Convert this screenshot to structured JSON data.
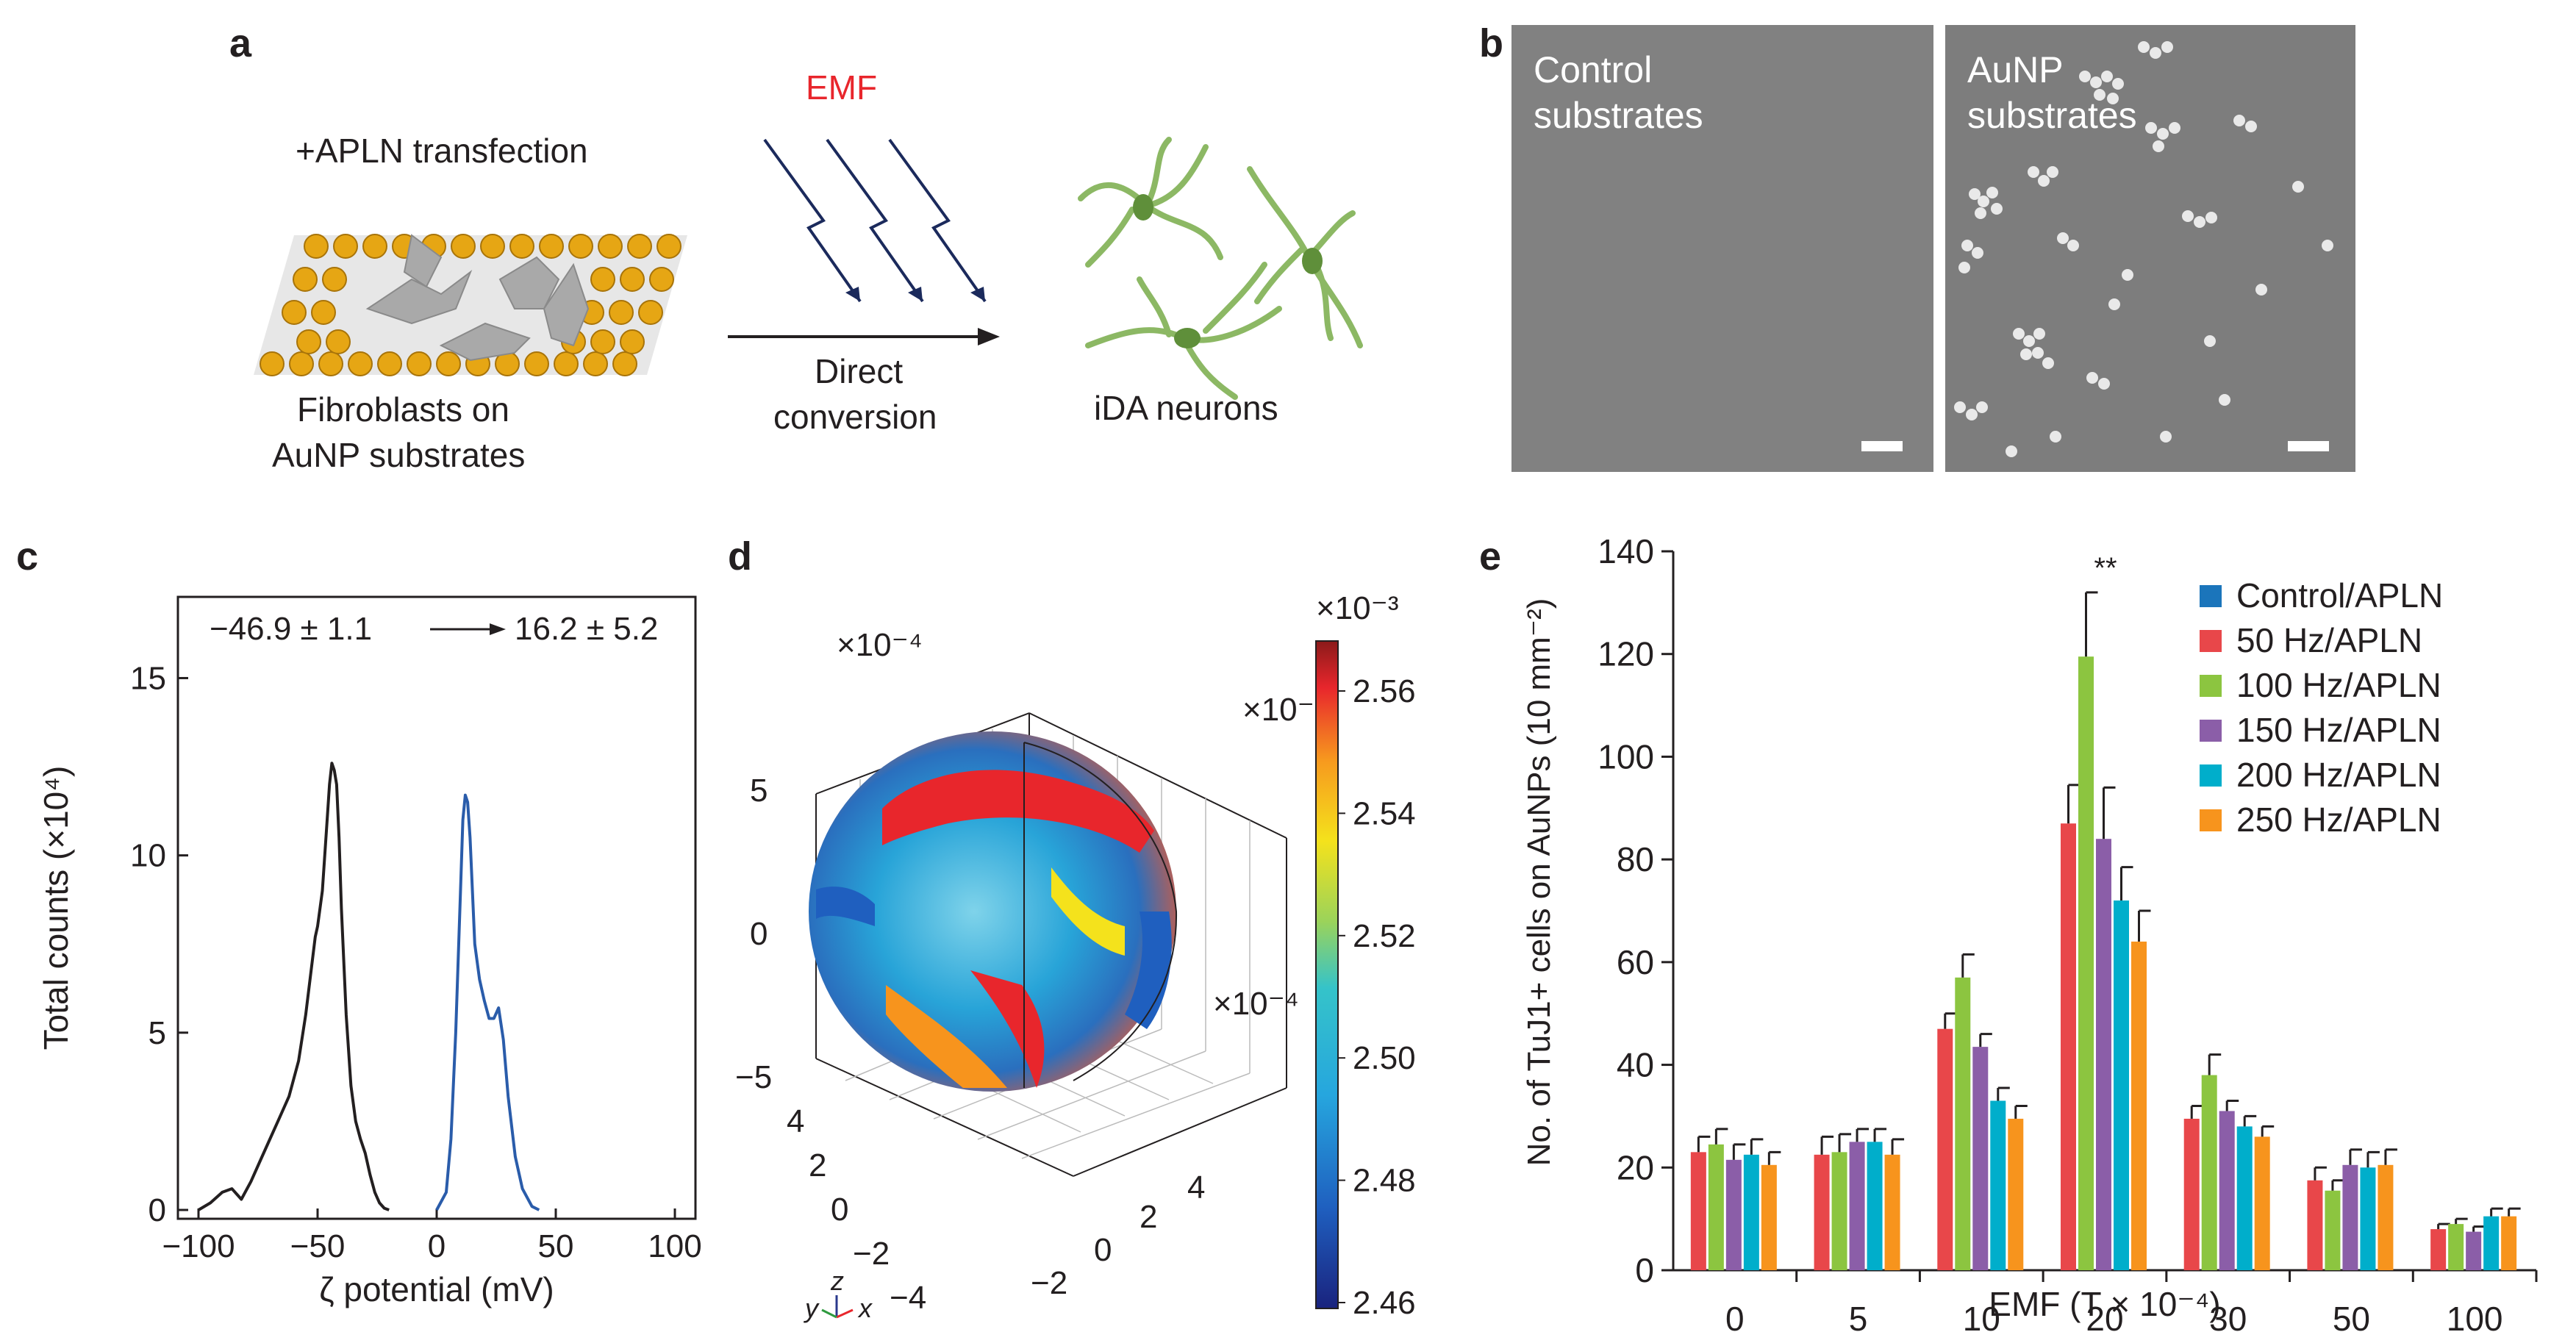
{
  "panel_a": {
    "label": "a",
    "transfection": "+APLN transfection",
    "emf": "EMF",
    "arrow_label_1": "Direct",
    "arrow_label_2": "conversion",
    "substrate_label_1": "Fibroblasts on",
    "substrate_label_2": "AuNP substrates",
    "neurons": "iDA neurons",
    "emf_color": "#e8262c"
  },
  "panel_b": {
    "label": "b",
    "left_caption_1": "Control",
    "left_caption_2": "substrates",
    "right_caption_1": "AuNP",
    "right_caption_2": "substrates"
  },
  "panel_c": {
    "label": "c",
    "annotation_left": "−46.9 ± 1.1",
    "annotation_right": "16.2 ± 5.2",
    "ylabel": "Total counts (×10⁴)",
    "xlabel": "ζ potential (mV)",
    "x_ticks": [
      "−100",
      "−50",
      "0",
      "50",
      "100"
    ],
    "y_ticks": [
      "0",
      "5",
      "10",
      "15"
    ]
  },
  "panel_d": {
    "label": "d",
    "exp_top_left": "×10⁻⁴",
    "exp_top_right": "×10⁻⁴",
    "exp_right": "×10⁻⁴",
    "colorbar_exp": "×10⁻³",
    "colorbar_ticks": [
      "2.56",
      "2.54",
      "2.52",
      "2.50",
      "2.48",
      "2.46"
    ],
    "z_ticks": [
      "5",
      "0",
      "−5"
    ],
    "y_ticks": [
      "4",
      "2",
      "0",
      "−2",
      "−4"
    ],
    "x_ticks": [
      "4",
      "2",
      "0",
      "−2"
    ],
    "axis_y": "y",
    "axis_z": "z",
    "axis_x": "x"
  },
  "panel_e": {
    "label": "e",
    "significance": "**"
  },
  "chart_data": [
    {
      "type": "line",
      "panel": "c",
      "xlabel": "ζ potential (mV)",
      "ylabel": "Total counts (×10⁴)",
      "xlim": [
        -100,
        100
      ],
      "ylim": [
        0,
        17
      ],
      "series": [
        {
          "color": "#231f20",
          "x": [
            -100,
            -95,
            -90,
            -86,
            -82,
            -78,
            -74,
            -70,
            -66,
            -62,
            -58,
            -55,
            -53,
            -51,
            -50,
            -48,
            -46,
            -45,
            -44,
            -43,
            -42,
            -41,
            -40,
            -38,
            -36,
            -34,
            -32,
            -30,
            -28,
            -26,
            -24,
            -22,
            -20
          ],
          "y": [
            0,
            0.2,
            0.5,
            0.6,
            0.3,
            0.8,
            1.4,
            2.0,
            2.6,
            3.2,
            4.2,
            5.5,
            6.6,
            7.7,
            8.0,
            9.0,
            11.0,
            12.0,
            12.6,
            12.4,
            12.0,
            10.5,
            8.5,
            5.5,
            3.5,
            2.5,
            2.0,
            1.6,
            1.0,
            0.5,
            0.2,
            0.05,
            0
          ]
        },
        {
          "color": "#2a5caa",
          "x": [
            0,
            4,
            6,
            8,
            10,
            11,
            12,
            13,
            14,
            15,
            16,
            18,
            20,
            22,
            24,
            26,
            28,
            30,
            33,
            36,
            40,
            43
          ],
          "y": [
            0,
            0.5,
            2.0,
            5.0,
            9.0,
            11.0,
            11.7,
            11.5,
            10.5,
            9.0,
            7.5,
            6.5,
            5.9,
            5.4,
            5.4,
            5.7,
            4.8,
            3.2,
            1.5,
            0.6,
            0.1,
            0
          ]
        }
      ]
    },
    {
      "type": "bar",
      "panel": "e",
      "xlabel": "EMF (T × 10⁻⁴)",
      "ylabel": "No. of TuJ1+ cells on AuNPs (10 mm⁻²)",
      "ylim": [
        0,
        140
      ],
      "y_ticks": [
        0,
        20,
        40,
        60,
        80,
        100,
        120,
        140
      ],
      "legend_position": "top-right",
      "categories": [
        "0",
        "5",
        "10",
        "20",
        "30",
        "50",
        "100"
      ],
      "series": [
        {
          "name": "Control/APLN",
          "color": "#1b75bb",
          "values": [
            null,
            null,
            null,
            null,
            null,
            null,
            null
          ],
          "errors": [
            null,
            null,
            null,
            null,
            null,
            null,
            null
          ]
        },
        {
          "name": "50 Hz/APLN",
          "color": "#e8474a",
          "values": [
            23,
            22.5,
            47,
            87,
            29.5,
            17.5,
            8
          ],
          "errors": [
            3,
            3.5,
            3,
            7.5,
            2.5,
            2.5,
            1
          ]
        },
        {
          "name": "100 Hz/APLN",
          "color": "#8cc540",
          "values": [
            24.5,
            23,
            57,
            119.5,
            38,
            15.5,
            9
          ],
          "errors": [
            3,
            3.5,
            4.5,
            12.5,
            4,
            2,
            1
          ]
        },
        {
          "name": "150 Hz/APLN",
          "color": "#8b5ea8",
          "values": [
            21.5,
            25,
            43.5,
            84,
            31,
            20.5,
            7.5
          ],
          "errors": [
            3,
            2.5,
            2.5,
            10,
            2,
            3,
            1
          ]
        },
        {
          "name": "200 Hz/APLN",
          "color": "#00aecb",
          "values": [
            22.5,
            25,
            33,
            72,
            28,
            20,
            10.5
          ],
          "errors": [
            3,
            2.5,
            2.5,
            6.5,
            2,
            3,
            1.5
          ]
        },
        {
          "name": "250 Hz/APLN",
          "color": "#f7941d",
          "values": [
            20.5,
            22.5,
            29.5,
            64,
            26,
            20.5,
            10.5
          ],
          "errors": [
            2.5,
            3,
            2.5,
            6,
            2,
            3,
            1.5
          ]
        }
      ]
    }
  ]
}
